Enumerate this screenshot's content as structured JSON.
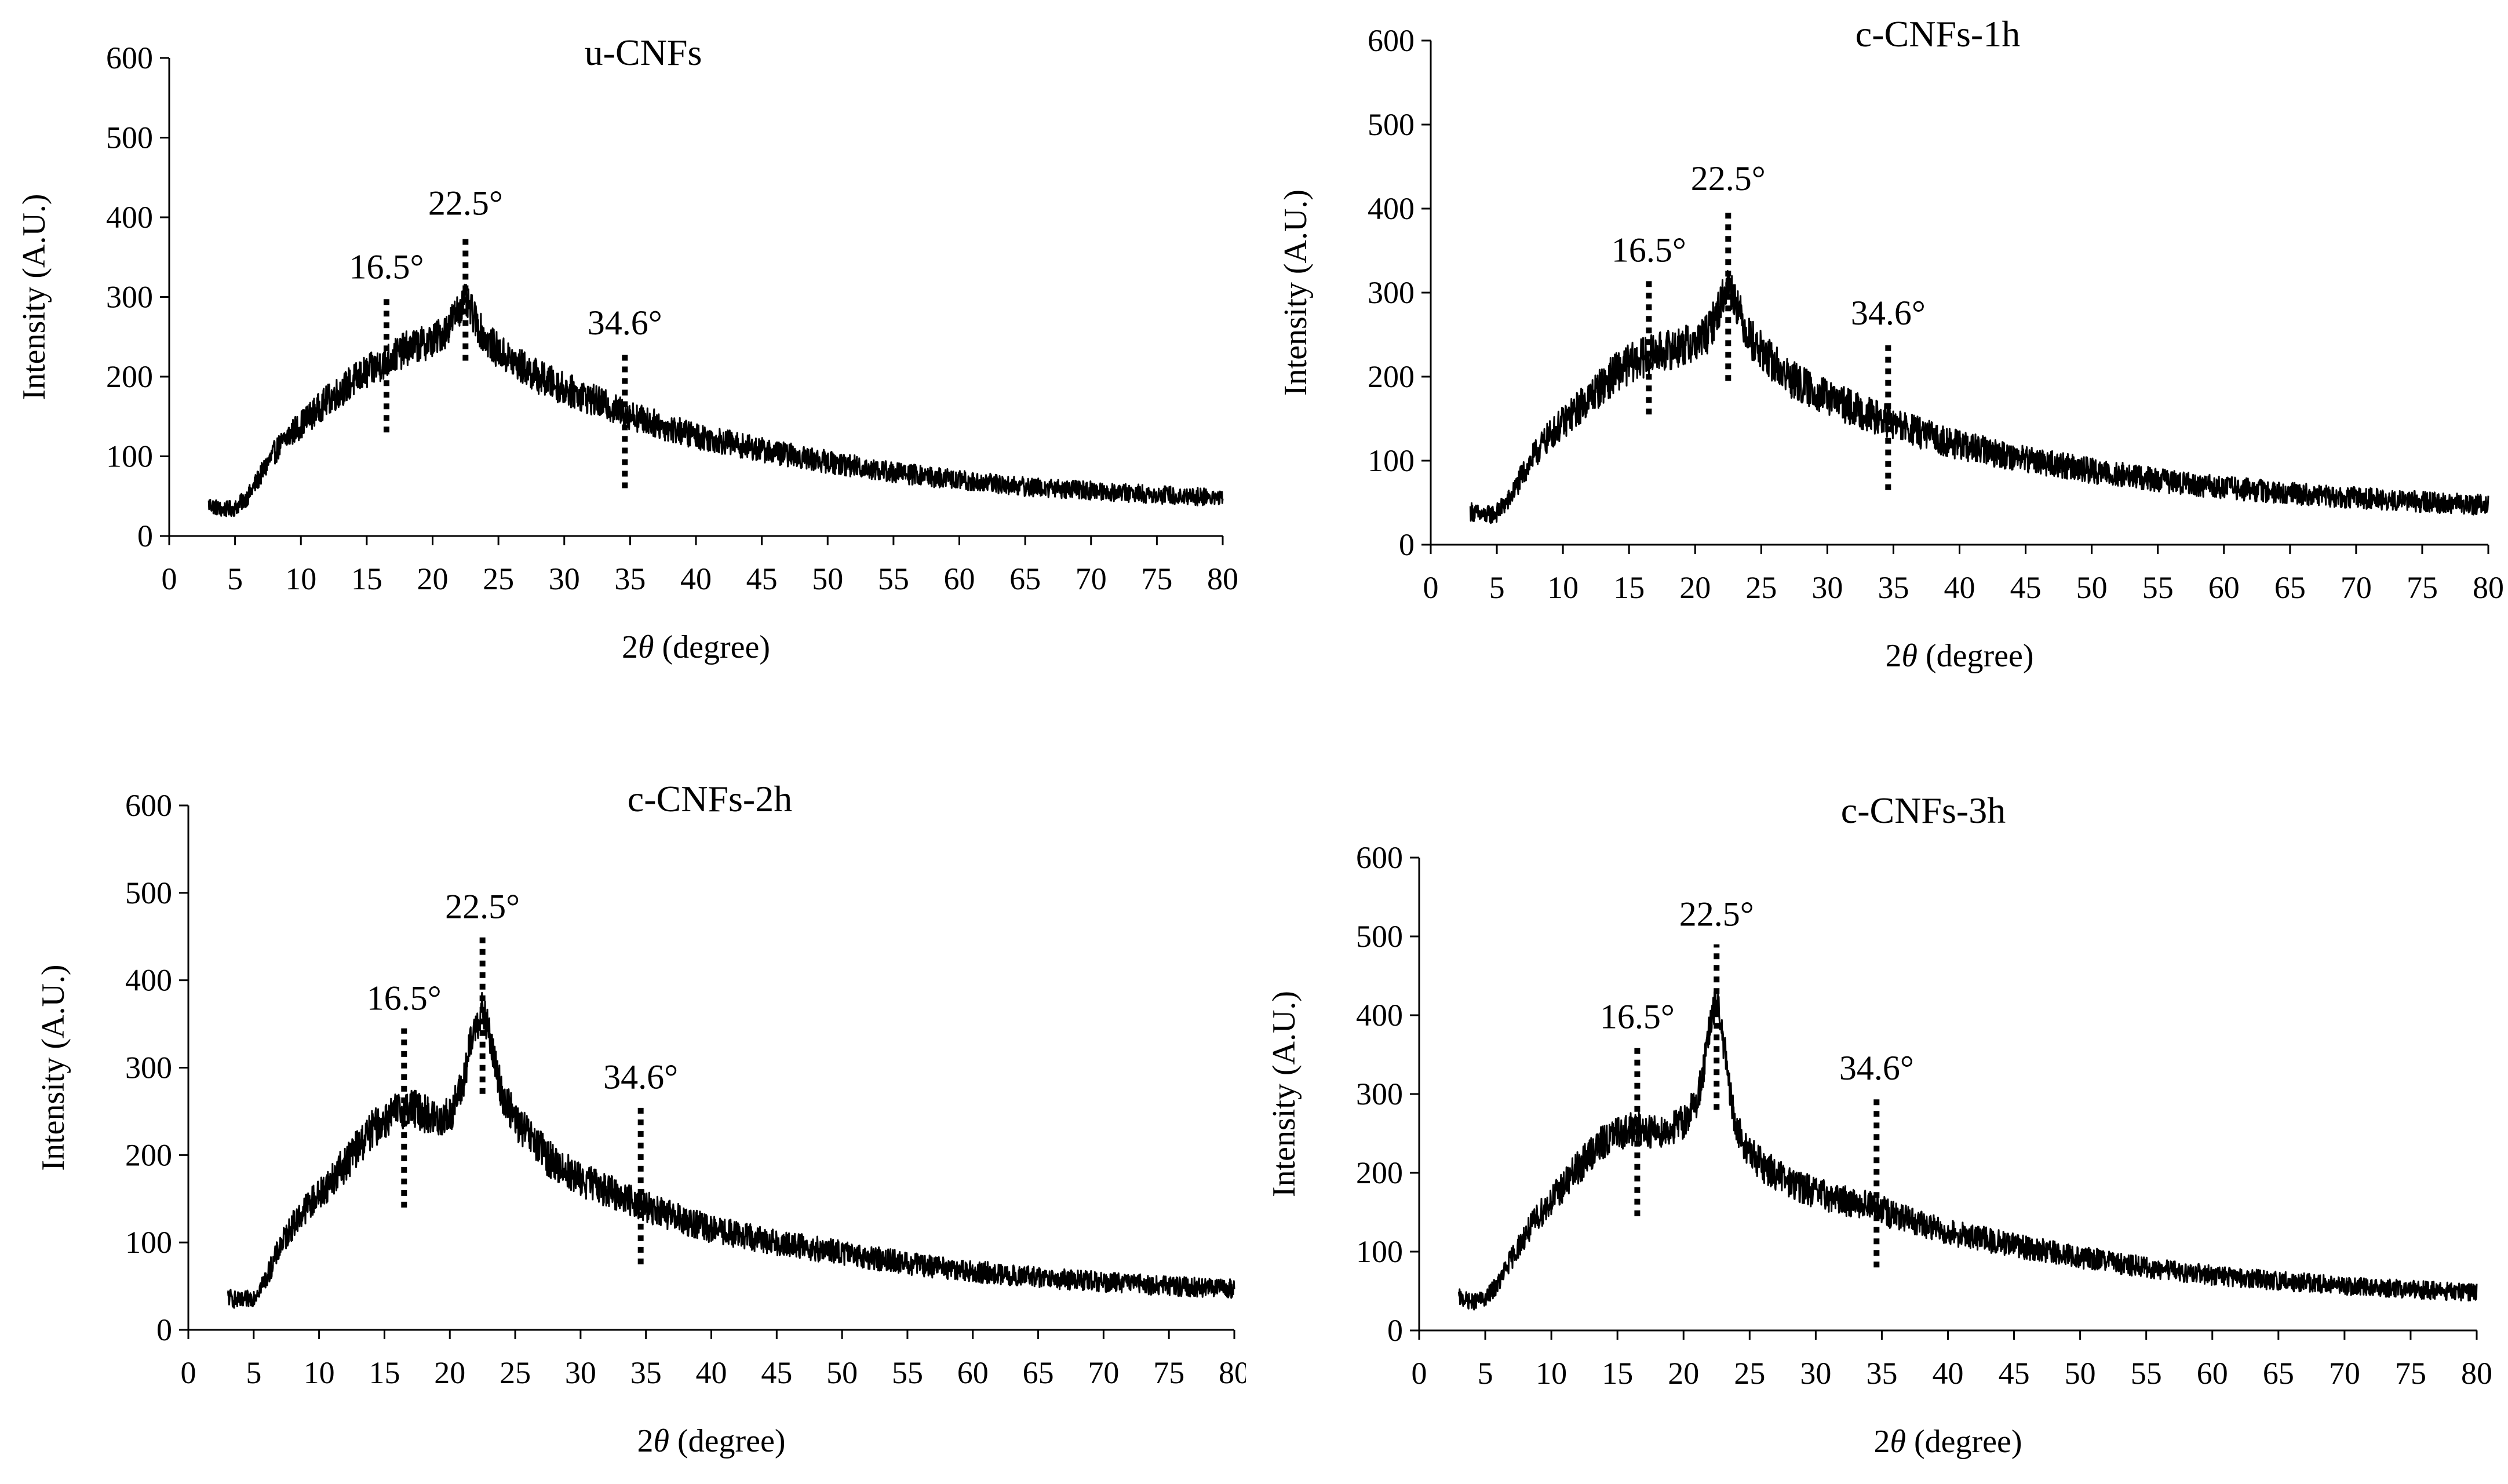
{
  "figure": {
    "description_free": true
  },
  "chart_data": [
    {
      "type": "line",
      "title": "u-CNFs",
      "xlabel_prefix": "2",
      "xlabel_symbol": "θ",
      "xlabel_suffix": " (degree)",
      "ylabel": "Intensity (A.U.)",
      "xlim": [
        0,
        80
      ],
      "ylim": [
        0,
        600
      ],
      "xticks": [
        0,
        5,
        10,
        15,
        20,
        25,
        30,
        35,
        40,
        45,
        50,
        55,
        60,
        65,
        70,
        75,
        80
      ],
      "yticks": [
        0,
        100,
        200,
        300,
        400,
        500,
        600
      ],
      "grid": false,
      "series": [
        {
          "name": "u-CNFs",
          "x": [
            3,
            4,
            5,
            6,
            7,
            8,
            9,
            10,
            11,
            12,
            13,
            14,
            15,
            16,
            17,
            18,
            19,
            20,
            21,
            21.5,
            22,
            22.5,
            23,
            23.5,
            24,
            25,
            26,
            27,
            28,
            30,
            32,
            34,
            36,
            38,
            40,
            45,
            50,
            55,
            60,
            65,
            70,
            75,
            80
          ],
          "y": [
            40,
            33,
            35,
            50,
            78,
            105,
            125,
            140,
            155,
            170,
            182,
            195,
            205,
            215,
            225,
            235,
            240,
            245,
            258,
            272,
            285,
            295,
            280,
            262,
            248,
            232,
            220,
            210,
            200,
            185,
            172,
            158,
            146,
            135,
            126,
            108,
            93,
            80,
            70,
            62,
            57,
            52,
            48
          ],
          "noise": 22
        }
      ],
      "peaks": [
        {
          "x": 16.5,
          "label": "16.5°",
          "y_bottom": 130,
          "y_top": 300
        },
        {
          "x": 22.5,
          "label": "22.5°",
          "y_bottom": 220,
          "y_top": 380
        },
        {
          "x": 34.6,
          "label": "34.6°",
          "y_bottom": 60,
          "y_top": 230
        }
      ]
    },
    {
      "type": "line",
      "title": "c-CNFs-1h",
      "xlabel_prefix": "2",
      "xlabel_symbol": "θ",
      "xlabel_suffix": " (degree)",
      "ylabel": "Intensity (A.U.)",
      "xlim": [
        0,
        80
      ],
      "ylim": [
        0,
        600
      ],
      "xticks": [
        0,
        5,
        10,
        15,
        20,
        25,
        30,
        35,
        40,
        45,
        50,
        55,
        60,
        65,
        70,
        75,
        80
      ],
      "yticks": [
        0,
        100,
        200,
        300,
        400,
        500,
        600
      ],
      "grid": false,
      "series": [
        {
          "name": "c-CNFs-1h",
          "x": [
            3,
            4,
            5,
            6,
            7,
            8,
            9,
            10,
            11,
            12,
            13,
            14,
            15,
            16,
            17,
            18,
            19,
            20,
            21,
            21.5,
            22,
            22.5,
            23,
            23.5,
            24,
            25,
            26,
            27,
            28,
            30,
            32,
            34,
            36,
            38,
            40,
            45,
            50,
            55,
            60,
            65,
            70,
            75,
            80
          ],
          "y": [
            40,
            34,
            38,
            55,
            85,
            110,
            130,
            145,
            160,
            175,
            190,
            205,
            215,
            222,
            228,
            232,
            236,
            240,
            252,
            270,
            290,
            310,
            295,
            270,
            250,
            230,
            215,
            200,
            190,
            175,
            162,
            150,
            138,
            128,
            118,
            102,
            88,
            77,
            68,
            61,
            56,
            51,
            47
          ],
          "noise": 24
        }
      ],
      "peaks": [
        {
          "x": 16.5,
          "label": "16.5°",
          "y_bottom": 155,
          "y_top": 315
        },
        {
          "x": 22.5,
          "label": "22.5°",
          "y_bottom": 195,
          "y_top": 400
        },
        {
          "x": 34.6,
          "label": "34.6°",
          "y_bottom": 65,
          "y_top": 240
        }
      ]
    },
    {
      "type": "line",
      "title": "c-CNFs-2h",
      "xlabel_prefix": "2",
      "xlabel_symbol": "θ",
      "xlabel_suffix": " (degree)",
      "ylabel": "Intensity (A.U.)",
      "xlim": [
        0,
        80
      ],
      "ylim": [
        0,
        600
      ],
      "xticks": [
        0,
        5,
        10,
        15,
        20,
        25,
        30,
        35,
        40,
        45,
        50,
        55,
        60,
        65,
        70,
        75,
        80
      ],
      "yticks": [
        0,
        100,
        200,
        300,
        400,
        500,
        600
      ],
      "grid": false,
      "series": [
        {
          "name": "c-CNFs-2h",
          "x": [
            3,
            4,
            5,
            6,
            7,
            8,
            9,
            10,
            11,
            12,
            13,
            14,
            15,
            16,
            17,
            18,
            19,
            20,
            21,
            21.5,
            22,
            22.5,
            23,
            23.5,
            24,
            25,
            26,
            27,
            28,
            30,
            32,
            34,
            36,
            38,
            40,
            45,
            50,
            55,
            60,
            65,
            70,
            75,
            80
          ],
          "y": [
            38,
            32,
            38,
            60,
            95,
            120,
            140,
            155,
            172,
            190,
            210,
            228,
            240,
            250,
            255,
            248,
            240,
            245,
            280,
            320,
            350,
            365,
            340,
            300,
            270,
            240,
            222,
            205,
            190,
            172,
            160,
            148,
            135,
            125,
            115,
            100,
            88,
            76,
            67,
            60,
            55,
            50,
            47
          ],
          "noise": 22
        }
      ],
      "peaks": [
        {
          "x": 16.5,
          "label": "16.5°",
          "y_bottom": 140,
          "y_top": 345
        },
        {
          "x": 22.5,
          "label": "22.5°",
          "y_bottom": 270,
          "y_top": 450
        },
        {
          "x": 34.6,
          "label": "34.6°",
          "y_bottom": 75,
          "y_top": 255
        }
      ]
    },
    {
      "type": "line",
      "title": "c-CNFs-3h",
      "xlabel_prefix": "2",
      "xlabel_symbol": "θ",
      "xlabel_suffix": " (degree)",
      "ylabel": "Intensity (A.U.)",
      "xlim": [
        0,
        80
      ],
      "ylim": [
        0,
        600
      ],
      "xticks": [
        0,
        5,
        10,
        15,
        20,
        25,
        30,
        35,
        40,
        45,
        50,
        55,
        60,
        65,
        70,
        75,
        80
      ],
      "yticks": [
        0,
        100,
        200,
        300,
        400,
        500,
        600
      ],
      "grid": false,
      "series": [
        {
          "name": "c-CNFs-3h",
          "x": [
            3,
            4,
            5,
            6,
            7,
            8,
            9,
            10,
            11,
            12,
            13,
            14,
            15,
            16,
            17,
            18,
            19,
            20,
            21,
            21.5,
            22,
            22.5,
            23,
            23.5,
            24,
            25,
            26,
            27,
            28,
            30,
            32,
            34,
            36,
            38,
            40,
            45,
            50,
            55,
            60,
            65,
            70,
            75,
            80
          ],
          "y": [
            42,
            36,
            40,
            60,
            92,
            120,
            145,
            165,
            185,
            205,
            225,
            240,
            250,
            255,
            255,
            252,
            255,
            265,
            290,
            330,
            385,
            420,
            370,
            300,
            255,
            225,
            210,
            198,
            188,
            175,
            165,
            160,
            145,
            135,
            125,
            108,
            93,
            80,
            70,
            63,
            57,
            52,
            48
          ],
          "noise": 22
        }
      ],
      "peaks": [
        {
          "x": 16.5,
          "label": "16.5°",
          "y_bottom": 145,
          "y_top": 360
        },
        {
          "x": 22.5,
          "label": "22.5°",
          "y_bottom": 280,
          "y_top": 490
        },
        {
          "x": 34.6,
          "label": "34.6°",
          "y_bottom": 80,
          "y_top": 295
        }
      ]
    }
  ]
}
